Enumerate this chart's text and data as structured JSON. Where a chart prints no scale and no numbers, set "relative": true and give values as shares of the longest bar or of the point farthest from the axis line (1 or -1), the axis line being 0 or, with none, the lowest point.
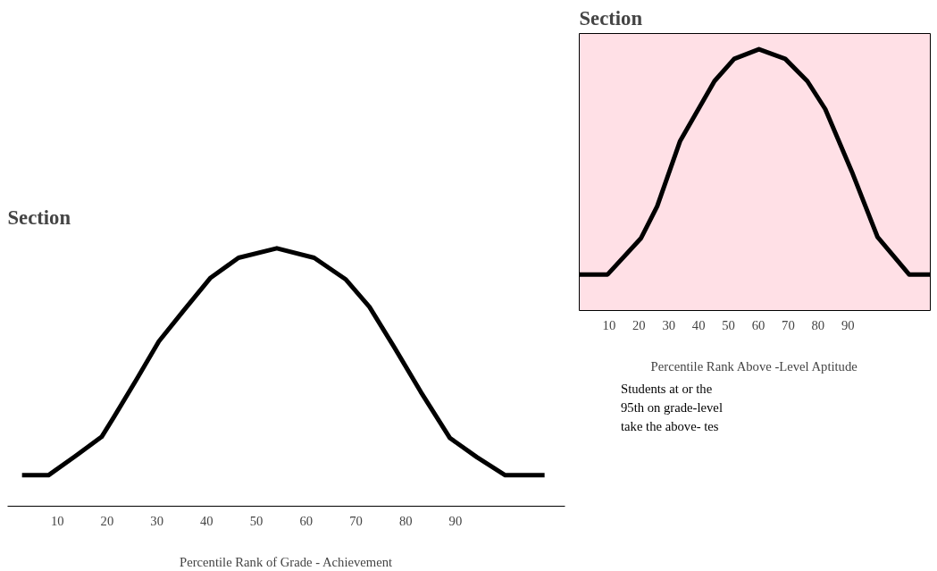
{
  "chart_data": [
    {
      "type": "line",
      "title": "Section",
      "xlabel": "Percentile Rank of Grade - Achievement",
      "relative": true,
      "xlim": [
        0,
        112
      ],
      "xticks": [
        10,
        20,
        30,
        40,
        50,
        60,
        70,
        80,
        90
      ],
      "series": [
        {
          "color": "#000000",
          "x": [
            2.9,
            8.2,
            13.6,
            18.9,
            21.4,
            25.9,
            30.4,
            35.4,
            40.7,
            46.4,
            54.1,
            61.6,
            67.9,
            72.7,
            77.7,
            83.0,
            88.9,
            94.3,
            100,
            107.9
          ],
          "values": [
            0.12,
            0.12,
            0.194,
            0.269,
            0.347,
            0.491,
            0.639,
            0.759,
            0.884,
            0.963,
            1,
            0.963,
            0.88,
            0.773,
            0.616,
            0.444,
            0.264,
            0.19,
            0.12,
            0.12
          ]
        }
      ],
      "annotations": [
        "Students at or the 95th on grade-level take the above- tes"
      ]
    },
    {
      "type": "line",
      "title": "Section",
      "xlabel": "Percentile Rank Above -Level Aptitude",
      "relative": true,
      "xlim": [
        0,
        117.6
      ],
      "xticks": [
        10,
        20,
        30,
        40,
        50,
        60,
        70,
        80,
        90
      ],
      "series": [
        {
          "color": "#000000",
          "x": [
            0,
            9.5,
            20.7,
            26.1,
            33.8,
            45.3,
            51.9,
            60.2,
            69.0,
            76.4,
            82.4,
            91.3,
            99.9,
            110.5,
            117.6
          ],
          "values": [
            0.138,
            0.138,
            0.277,
            0.399,
            0.649,
            0.878,
            0.963,
            1,
            0.963,
            0.878,
            0.771,
            0.532,
            0.282,
            0.138,
            0.138
          ]
        }
      ]
    }
  ]
}
